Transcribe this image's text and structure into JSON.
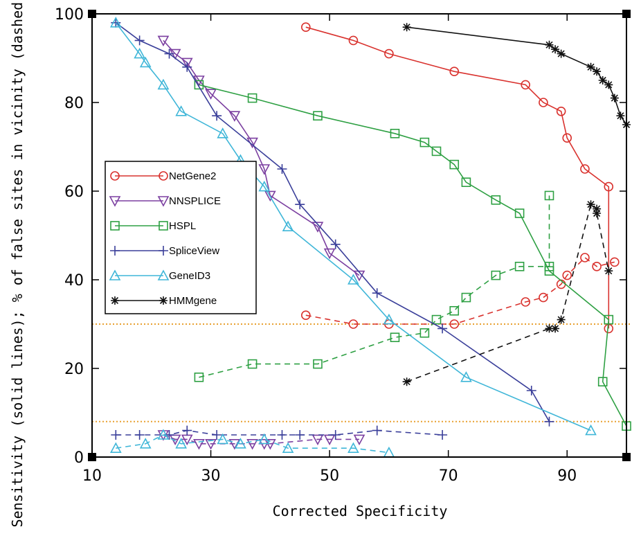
{
  "chart_data": {
    "type": "line",
    "title": "",
    "xlabel": "Corrected Specificity",
    "ylabel": "Sensitivity (solid lines); % of false sites in vicinity (dashed lines)",
    "xlim": [
      10,
      100
    ],
    "ylim": [
      0,
      100
    ],
    "xticks": [
      "10",
      "30",
      "50",
      "70",
      "90"
    ],
    "xtick_values": [
      10,
      30,
      50,
      70,
      90
    ],
    "yticks": [
      "0",
      "20",
      "40",
      "60",
      "80",
      "100"
    ],
    "ytick_values": [
      0,
      20,
      40,
      60,
      80,
      100
    ],
    "legend_position": "center-left",
    "reference_lines": [
      30,
      8
    ],
    "reference_color": "#e8a030",
    "series": [
      {
        "name": "NetGene2",
        "color": "#d9322e",
        "marker": "circle",
        "solid": [
          [
            46,
            97
          ],
          [
            54,
            94
          ],
          [
            60,
            91
          ],
          [
            71,
            87
          ],
          [
            83,
            84
          ],
          [
            86,
            80
          ],
          [
            89,
            78
          ],
          [
            90,
            72
          ],
          [
            93,
            65
          ],
          [
            97,
            61
          ],
          [
            97,
            29
          ]
        ],
        "dashed": [
          [
            46,
            32
          ],
          [
            54,
            30
          ],
          [
            60,
            30
          ],
          [
            71,
            30
          ],
          [
            83,
            35
          ],
          [
            86,
            36
          ],
          [
            89,
            39
          ],
          [
            90,
            41
          ],
          [
            93,
            45
          ],
          [
            95,
            43
          ],
          [
            98,
            44
          ]
        ]
      },
      {
        "name": "NNSPLICE",
        "color": "#7b3fa0",
        "marker": "triangle-down",
        "solid": [
          [
            22,
            94
          ],
          [
            24,
            91
          ],
          [
            26,
            89
          ],
          [
            28,
            85
          ],
          [
            30,
            82
          ],
          [
            34,
            77
          ],
          [
            37,
            71
          ],
          [
            39,
            65
          ],
          [
            40,
            59
          ],
          [
            48,
            52
          ],
          [
            50,
            46
          ],
          [
            55,
            41
          ]
        ],
        "dashed": [
          [
            22,
            5
          ],
          [
            24,
            4
          ],
          [
            26,
            4
          ],
          [
            28,
            3
          ],
          [
            30,
            3
          ],
          [
            34,
            3
          ],
          [
            37,
            3
          ],
          [
            39,
            3
          ],
          [
            40,
            3
          ],
          [
            48,
            4
          ],
          [
            50,
            4
          ],
          [
            55,
            4
          ]
        ]
      },
      {
        "name": "HSPL",
        "color": "#2ea043",
        "marker": "square",
        "solid": [
          [
            28,
            84
          ],
          [
            37,
            81
          ],
          [
            48,
            77
          ],
          [
            61,
            73
          ],
          [
            66,
            71
          ],
          [
            68,
            69
          ],
          [
            71,
            66
          ],
          [
            73,
            62
          ],
          [
            78,
            58
          ],
          [
            82,
            55
          ],
          [
            87,
            42
          ],
          [
            97,
            31
          ],
          [
            96,
            17
          ],
          [
            100,
            7
          ]
        ],
        "dashed": [
          [
            28,
            18
          ],
          [
            37,
            21
          ],
          [
            48,
            21
          ],
          [
            61,
            27
          ],
          [
            66,
            28
          ],
          [
            68,
            31
          ],
          [
            71,
            33
          ],
          [
            73,
            36
          ],
          [
            78,
            41
          ],
          [
            82,
            43
          ],
          [
            87,
            43
          ],
          [
            87,
            59
          ]
        ]
      },
      {
        "name": "SpliceView",
        "color": "#3a3f9a",
        "marker": "plus",
        "solid": [
          [
            14,
            98
          ],
          [
            18,
            94
          ],
          [
            23,
            91
          ],
          [
            26,
            88
          ],
          [
            31,
            77
          ],
          [
            42,
            65
          ],
          [
            45,
            57
          ],
          [
            51,
            48
          ],
          [
            58,
            37
          ],
          [
            69,
            29
          ],
          [
            84,
            15
          ],
          [
            87,
            8
          ]
        ],
        "dashed": [
          [
            14,
            5
          ],
          [
            18,
            5
          ],
          [
            23,
            5
          ],
          [
            26,
            6
          ],
          [
            31,
            5
          ],
          [
            42,
            5
          ],
          [
            45,
            5
          ],
          [
            51,
            5
          ],
          [
            58,
            6
          ],
          [
            69,
            5
          ]
        ]
      },
      {
        "name": "GeneID3",
        "color": "#3fb6d8",
        "marker": "triangle-up",
        "solid": [
          [
            14,
            98
          ],
          [
            18,
            91
          ],
          [
            19,
            89
          ],
          [
            22,
            84
          ],
          [
            25,
            78
          ],
          [
            32,
            73
          ],
          [
            35,
            67
          ],
          [
            39,
            61
          ],
          [
            43,
            52
          ],
          [
            54,
            40
          ],
          [
            60,
            31
          ],
          [
            73,
            18
          ],
          [
            94,
            6
          ]
        ],
        "dashed": [
          [
            14,
            2
          ],
          [
            19,
            3
          ],
          [
            22,
            5
          ],
          [
            25,
            3
          ],
          [
            32,
            4
          ],
          [
            35,
            3
          ],
          [
            39,
            4
          ],
          [
            43,
            2
          ],
          [
            54,
            2
          ],
          [
            60,
            1
          ]
        ]
      },
      {
        "name": "HMMgene",
        "color": "#111111",
        "marker": "asterisk",
        "solid": [
          [
            63,
            97
          ],
          [
            87,
            93
          ],
          [
            88,
            92
          ],
          [
            89,
            91
          ],
          [
            94,
            88
          ],
          [
            95,
            87
          ],
          [
            96,
            85
          ],
          [
            97,
            84
          ],
          [
            98,
            81
          ],
          [
            99,
            77
          ],
          [
            100,
            75
          ]
        ],
        "dashed": [
          [
            63,
            17
          ],
          [
            87,
            29
          ],
          [
            88,
            29
          ],
          [
            89,
            31
          ],
          [
            94,
            57
          ],
          [
            95,
            56
          ],
          [
            95,
            55
          ],
          [
            97,
            42
          ]
        ]
      }
    ]
  }
}
